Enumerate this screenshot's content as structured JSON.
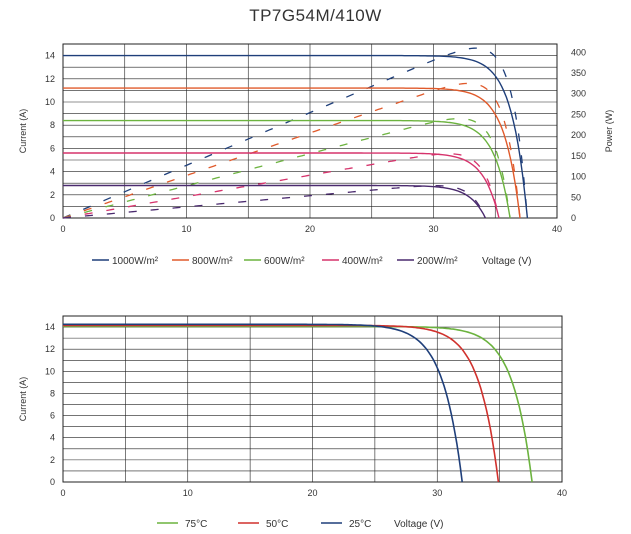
{
  "title": "TP7G54M/410W",
  "chart_data": [
    {
      "type": "line",
      "title": "",
      "xlabel": "Voltage (V)",
      "ylabel": "Current (A)",
      "y2label": "Power (W)",
      "xlim": [
        0,
        40
      ],
      "ylim": [
        0,
        15
      ],
      "y2lim": [
        0,
        420
      ],
      "xticks": [
        0,
        10,
        20,
        30,
        40
      ],
      "yticks": [
        0,
        2,
        4,
        6,
        8,
        10,
        12,
        14
      ],
      "y2ticks": [
        0,
        50,
        100,
        150,
        200,
        250,
        300,
        350,
        400
      ],
      "grid": true,
      "legend_position": "bottom",
      "series": [
        {
          "name": "1000W/m²",
          "color": "#1f3f7a",
          "isc": 14.0,
          "voc": 37.6,
          "pmax": 410
        },
        {
          "name": "800W/m²",
          "color": "#e05a2b",
          "isc": 11.2,
          "voc": 37.0,
          "pmax": 325
        },
        {
          "name": "600W/m²",
          "color": "#6cb33f",
          "isc": 8.4,
          "voc": 36.2,
          "pmax": 240
        },
        {
          "name": "400W/m²",
          "color": "#d6336c",
          "isc": 5.6,
          "voc": 35.3,
          "pmax": 155
        },
        {
          "name": "200W/m²",
          "color": "#4a2a6e",
          "isc": 2.8,
          "voc": 34.2,
          "pmax": 78
        }
      ]
    },
    {
      "type": "line",
      "title": "",
      "xlabel": "Voltage (V)",
      "ylabel": "Current (A)",
      "xlim": [
        0,
        40
      ],
      "ylim": [
        0,
        15
      ],
      "xticks": [
        0,
        10,
        20,
        30,
        40
      ],
      "yticks": [
        0,
        2,
        4,
        6,
        8,
        10,
        12,
        14
      ],
      "grid": true,
      "legend_position": "bottom",
      "series": [
        {
          "name": "75°C",
          "color": "#6cb33f",
          "isc": 14.05,
          "voc": 37.6
        },
        {
          "name": "50°C",
          "color": "#d0312d",
          "isc": 14.15,
          "voc": 34.9
        },
        {
          "name": "25°C",
          "color": "#1f3f7a",
          "isc": 14.25,
          "voc": 32.0
        }
      ]
    }
  ]
}
